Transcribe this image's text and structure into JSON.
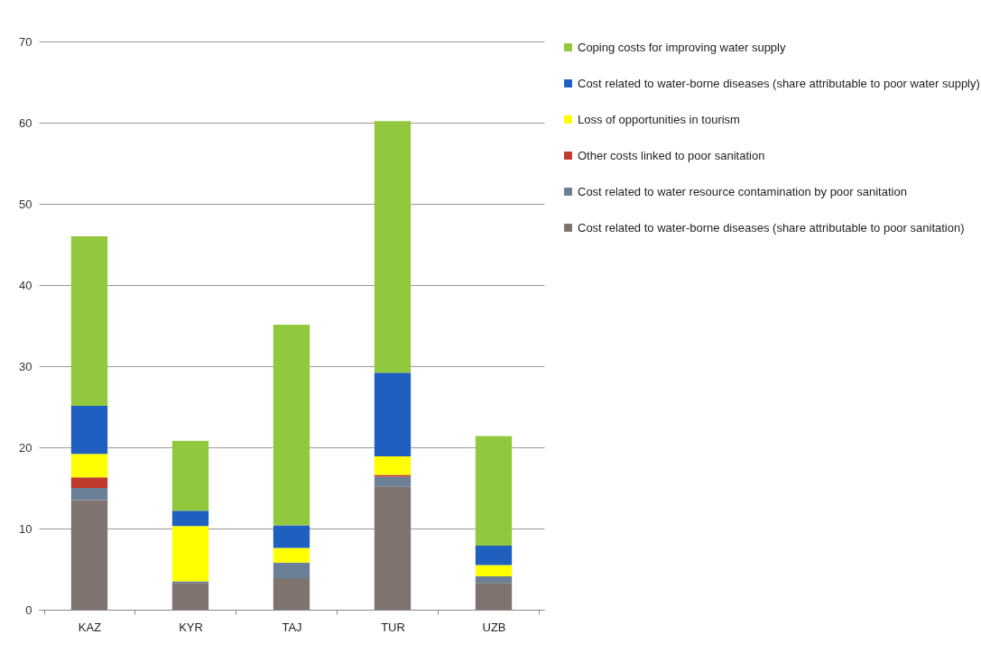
{
  "chart_data": {
    "type": "bar",
    "stacked": true,
    "categories": [
      "KAZ",
      "KYR",
      "TAJ",
      "TUR",
      "UZB"
    ],
    "series": [
      {
        "name": "Cost related to water-borne diseases (share attributable to poor sanitation)",
        "color": "#7f7370",
        "values": [
          13.5,
          3.3,
          3.9,
          15.2,
          3.3
        ]
      },
      {
        "name": "Cost related to water resource contamination by poor sanitation",
        "color": "#6b8096",
        "values": [
          1.5,
          0.2,
          1.9,
          1.2,
          0.8
        ]
      },
      {
        "name": "Other costs linked to poor sanitation",
        "color": "#c0392b",
        "values": [
          1.3,
          null,
          null,
          0.2,
          null
        ]
      },
      {
        "name": "Loss of opportunities in tourism",
        "color": "#ffff00",
        "values": [
          2.9,
          6.8,
          1.8,
          2.3,
          1.4
        ]
      },
      {
        "name": "Cost related to water-borne diseases (share attributable to poor water supply)",
        "color": "#1f5fbf",
        "values": [
          5.9,
          1.9,
          2.8,
          10.3,
          2.4
        ]
      },
      {
        "name": "Coping costs for improving water supply",
        "color": "#92c83e",
        "values": [
          20.9,
          8.6,
          24.7,
          31,
          13.5
        ]
      }
    ],
    "ylim": [
      0,
      70
    ],
    "yticks": [
      0,
      10,
      20,
      30,
      40,
      50,
      60,
      70
    ],
    "grid": "y",
    "legend": "right"
  }
}
